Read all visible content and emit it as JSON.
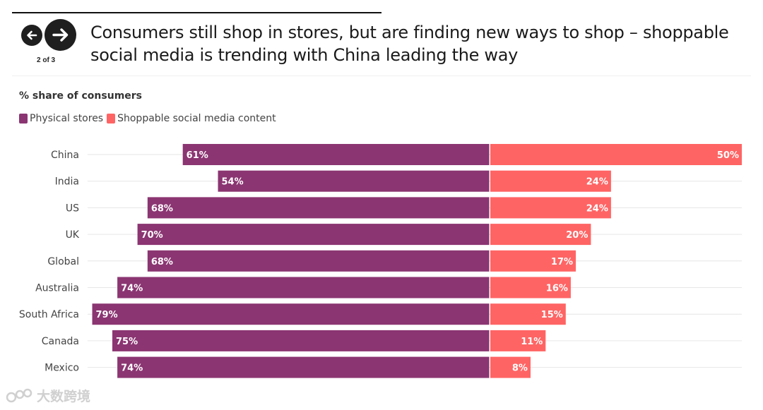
{
  "nav": {
    "page_count": "2 of 3",
    "prev_icon": "arrow-left-icon",
    "next_icon": "arrow-right-icon"
  },
  "headline": "Consumers still shop in stores, but are finding new ways to shop – shoppable social media is trending with China leading the way",
  "watermark": "大数跨境",
  "colors": {
    "physical": "#8b3572",
    "social": "#ff6464"
  },
  "chart_data": {
    "type": "bar",
    "orientation": "diverging-horizontal",
    "title": "% share of consumers",
    "categories": [
      "China",
      "India",
      "US",
      "UK",
      "Global",
      "Australia",
      "South Africa",
      "Canada",
      "Mexico"
    ],
    "series": [
      {
        "name": "Physical stores",
        "values": [
          61,
          54,
          68,
          70,
          68,
          74,
          79,
          75,
          74
        ]
      },
      {
        "name": "Shoppable social media content",
        "values": [
          50,
          24,
          24,
          20,
          17,
          16,
          15,
          11,
          8
        ]
      }
    ],
    "value_suffix": "%",
    "legend": "top-left",
    "grid": true
  }
}
